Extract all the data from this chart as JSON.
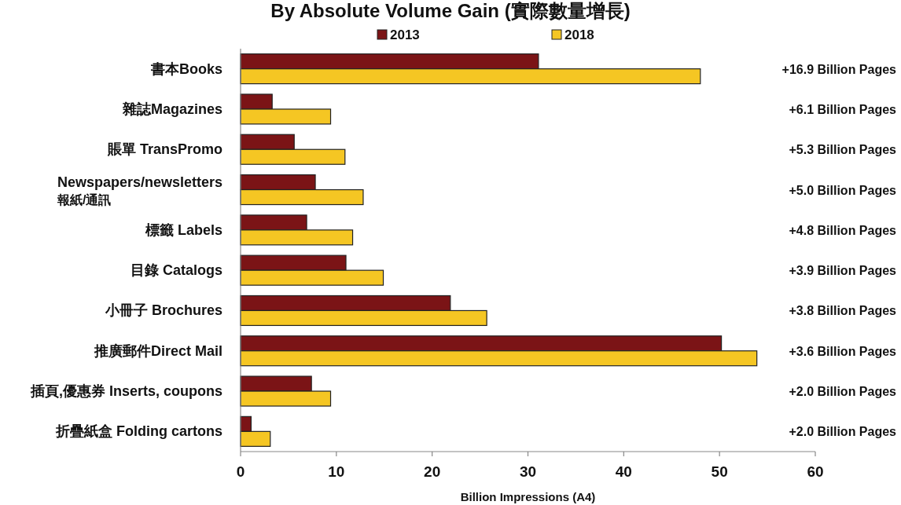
{
  "chart_data": {
    "type": "bar",
    "orientation": "horizontal",
    "title": "By Absolute Volume Gain (實際數量增長)",
    "xlabel": "Billion Impressions (A4)",
    "categories": [
      "書本Books",
      "雜誌Magazines",
      "賬單 TransPromo",
      "Newspapers/newsletters\n報紙/通訊",
      "標籤 Labels",
      "目錄 Catalogs",
      "小冊子 Brochures",
      "推廣郵件Direct Mail",
      "插頁,優惠券 Inserts, coupons",
      "折疊紙盒 Folding cartons"
    ],
    "series": [
      {
        "name": "2013",
        "color": "#7b1416",
        "values": [
          31.1,
          3.3,
          5.6,
          7.8,
          6.9,
          11.0,
          21.9,
          50.2,
          7.4,
          1.1
        ]
      },
      {
        "name": "2018",
        "color": "#f5c623",
        "values": [
          48.0,
          9.4,
          10.9,
          12.8,
          11.7,
          14.9,
          25.7,
          53.9,
          9.4,
          3.1
        ]
      }
    ],
    "xlim": [
      0,
      60
    ],
    "xticks": [
      0,
      10,
      20,
      30,
      40,
      50,
      60
    ],
    "grid": false,
    "legend": "top",
    "annotations": [
      "+16.9 Billion Pages",
      "+6.1 Billion Pages",
      "+5.3 Billion Pages",
      "+5.0 Billion Pages",
      "+4.8 Billion Pages",
      "+3.9 Billion Pages",
      "+3.8 Billion Pages",
      "+3.6 Billion Pages",
      "+2.0 Billion Pages",
      "+2.0 Billion Pages"
    ]
  }
}
